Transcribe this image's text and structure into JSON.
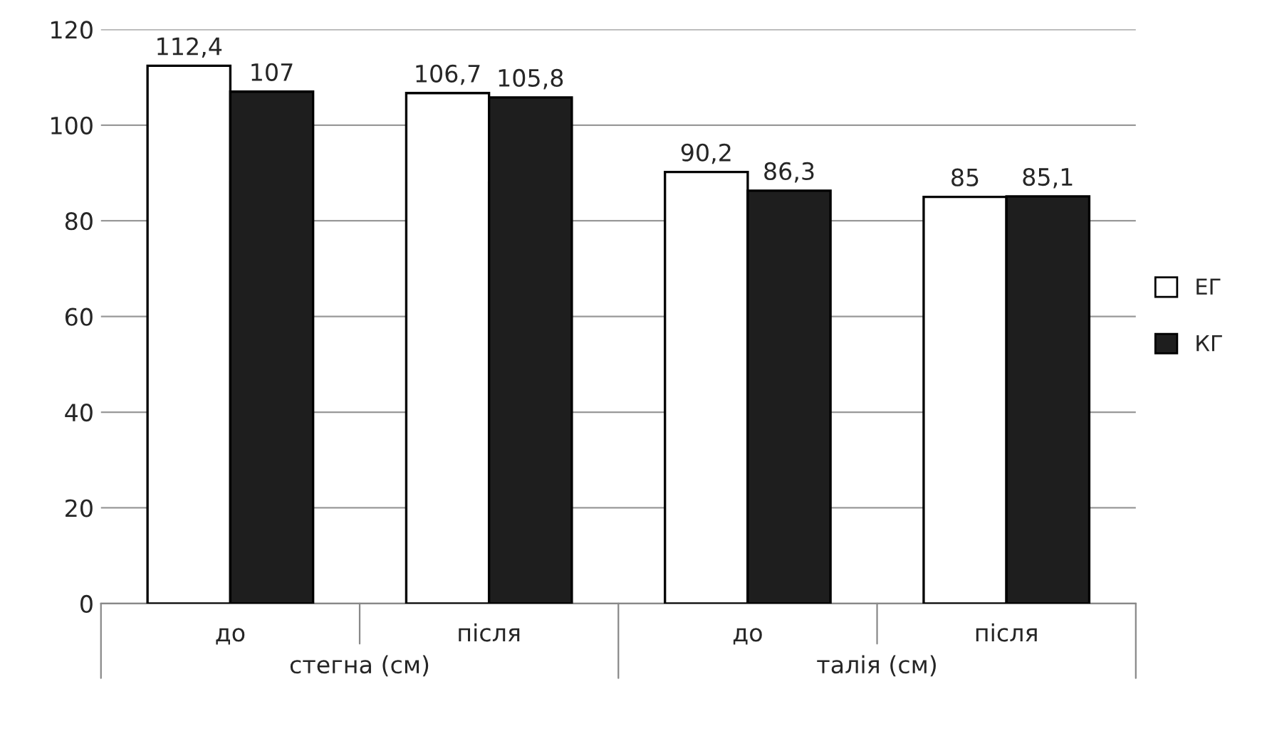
{
  "chart_data": {
    "type": "bar",
    "categories": [
      "до",
      "після",
      "до",
      "після"
    ],
    "series": [
      {
        "name": "ЕГ",
        "color": "#ffffff",
        "values": [
          112.4,
          106.7,
          90.2,
          85
        ],
        "value_labels": [
          "112,4",
          "106,7",
          "90,2",
          "85"
        ]
      },
      {
        "name": "КГ",
        "color": "#1e1e1e",
        "values": [
          107,
          105.8,
          86.3,
          85.1
        ],
        "value_labels": [
          "107",
          "105,8",
          "86,3",
          "85,1"
        ]
      }
    ],
    "annotations": [
      "стегна (см)",
      "талія (см)"
    ],
    "ylim": [
      0,
      120
    ],
    "yticks": [
      0,
      20,
      40,
      60,
      80,
      100,
      120
    ],
    "grid": "y",
    "legend": "right"
  }
}
